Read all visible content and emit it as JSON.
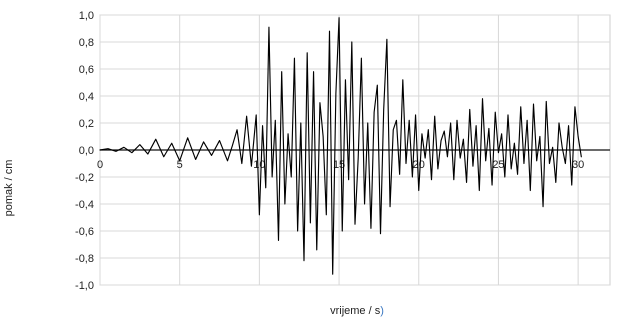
{
  "chart_data": {
    "type": "line",
    "title": "",
    "xlabel_main": "vrijeme / s",
    "xlabel_suffix": ")",
    "ylabel": "pomak / cm",
    "xlim": [
      0,
      32
    ],
    "ylim": [
      -1.0,
      1.0
    ],
    "grid": true,
    "legend": "none",
    "x_ticks": [
      0,
      5,
      10,
      15,
      20,
      25,
      30
    ],
    "x_tick_labels": [
      "0",
      "5",
      "10",
      "15",
      "20",
      "25",
      "30"
    ],
    "y_ticks": [
      -1.0,
      -0.8,
      -0.6,
      -0.4,
      -0.2,
      0.0,
      0.2,
      0.4,
      0.6,
      0.8,
      1.0
    ],
    "y_tick_labels": [
      "-1,0",
      "-0,8",
      "-0,6",
      "-0,4",
      "-0,2",
      "0,0",
      "0,2",
      "0,4",
      "0,6",
      "0,8",
      "1,0"
    ],
    "colors": {
      "series": "#000000",
      "zero_axis": "#111111",
      "grid": "#d8d8d8",
      "frame": "#cfcfcf",
      "suffix": "#3b78c2"
    },
    "series": [
      {
        "x": [
          0,
          0.5,
          1.0,
          1.5,
          2.0,
          2.5,
          3.0,
          3.5,
          4.0,
          4.5,
          5.0,
          5.5,
          6.0,
          6.5,
          7.0,
          7.5,
          8.0,
          8.3,
          8.6,
          8.9,
          9.2,
          9.5,
          9.8,
          10.0,
          10.2,
          10.4,
          10.6,
          10.8,
          11.0,
          11.2,
          11.4,
          11.6,
          11.8,
          12.0,
          12.2,
          12.4,
          12.6,
          12.8,
          13.0,
          13.2,
          13.4,
          13.6,
          13.8,
          14.0,
          14.2,
          14.4,
          14.6,
          14.8,
          15.0,
          15.2,
          15.4,
          15.6,
          15.8,
          16.0,
          16.2,
          16.4,
          16.6,
          16.8,
          17.0,
          17.2,
          17.4,
          17.6,
          17.8,
          18.0,
          18.2,
          18.4,
          18.6,
          18.8,
          19.0,
          19.2,
          19.4,
          19.6,
          19.8,
          20.0,
          20.2,
          20.4,
          20.6,
          20.8,
          21.0,
          21.2,
          21.4,
          21.6,
          21.8,
          22.0,
          22.2,
          22.4,
          22.6,
          22.8,
          23.0,
          23.2,
          23.4,
          23.6,
          23.8,
          24.0,
          24.2,
          24.4,
          24.6,
          24.8,
          25.0,
          25.2,
          25.4,
          25.6,
          25.8,
          26.0,
          26.2,
          26.4,
          26.6,
          26.8,
          27.0,
          27.2,
          27.4,
          27.6,
          27.8,
          28.0,
          28.2,
          28.4,
          28.6,
          28.8,
          29.0,
          29.2,
          29.4,
          29.6,
          29.8,
          30.0,
          30.2
        ],
        "y": [
          0.0,
          0.01,
          -0.01,
          0.02,
          -0.02,
          0.04,
          -0.03,
          0.08,
          -0.05,
          0.05,
          -0.08,
          0.09,
          -0.07,
          0.06,
          -0.04,
          0.07,
          -0.08,
          0.03,
          0.15,
          -0.1,
          0.25,
          -0.12,
          0.26,
          -0.48,
          0.18,
          -0.28,
          0.91,
          -0.2,
          0.22,
          -0.67,
          0.58,
          -0.4,
          0.12,
          -0.2,
          0.68,
          -0.6,
          0.2,
          -0.82,
          0.72,
          -0.54,
          0.58,
          -0.74,
          0.35,
          0.1,
          -0.48,
          0.88,
          -0.92,
          0.42,
          0.98,
          -0.6,
          0.52,
          -0.22,
          0.8,
          -0.55,
          -0.06,
          0.68,
          -0.4,
          0.2,
          -0.58,
          0.28,
          0.48,
          -0.62,
          0.3,
          0.82,
          -0.42,
          0.15,
          0.22,
          -0.18,
          0.52,
          -0.1,
          0.22,
          -0.2,
          0.26,
          -0.3,
          0.12,
          -0.06,
          0.15,
          -0.22,
          0.25,
          -0.14,
          0.07,
          0.14,
          -0.05,
          0.2,
          -0.22,
          0.22,
          -0.06,
          0.08,
          -0.24,
          0.3,
          -0.12,
          0.18,
          -0.3,
          0.38,
          -0.08,
          0.16,
          -0.26,
          0.28,
          -0.02,
          0.12,
          -0.2,
          0.26,
          -0.14,
          0.05,
          -0.18,
          0.32,
          -0.1,
          0.22,
          -0.3,
          0.34,
          -0.08,
          0.1,
          -0.42,
          0.36,
          -0.1,
          0.02,
          -0.24,
          0.2,
          0.02,
          -0.1,
          0.18,
          -0.26,
          0.32,
          0.1,
          -0.05
        ]
      }
    ]
  }
}
